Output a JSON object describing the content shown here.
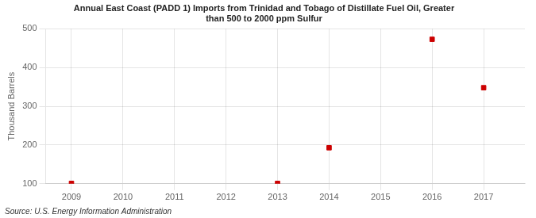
{
  "chart_data": {
    "type": "scatter",
    "title": "Annual East Coast (PADD 1) Imports from Trinidad and Tobago of Distillate Fuel Oil, Greater\nthan 500 to 2000 ppm Sulfur",
    "y_label": "Thousand Barrels",
    "source": "Source: U.S. Energy Information Administration",
    "x": [
      2009,
      2013,
      2014,
      2016,
      2017
    ],
    "values": [
      101,
      101,
      193,
      473,
      348
    ],
    "color": "#cc0000",
    "marker": "square",
    "xlim": [
      2008.5,
      2017.8
    ],
    "xticks": [
      2009,
      2010,
      2011,
      2012,
      2013,
      2014,
      2015,
      2016,
      2017
    ],
    "ylim": [
      100,
      500
    ],
    "yticks": [
      100,
      200,
      300,
      400,
      500
    ],
    "grid": true
  }
}
